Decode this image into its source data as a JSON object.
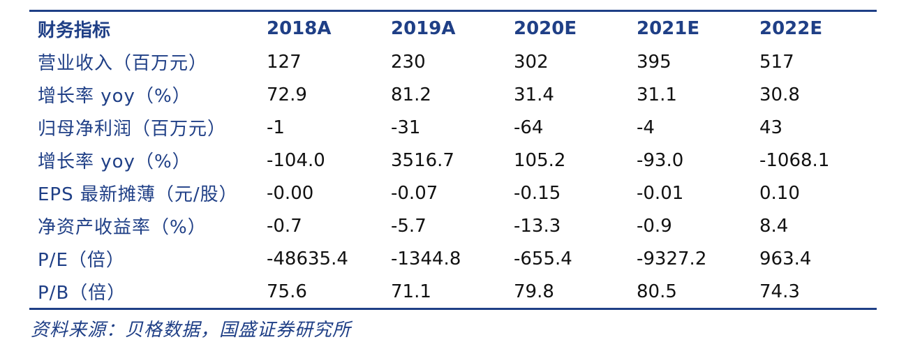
{
  "table": {
    "columns": [
      "财务指标",
      "2018A",
      "2019A",
      "2020E",
      "2021E",
      "2022E"
    ],
    "rows": [
      [
        "营业收入（百万元）",
        "127",
        "230",
        "302",
        "395",
        "517"
      ],
      [
        "增长率 yoy（%）",
        "72.9",
        "81.2",
        "31.4",
        "31.1",
        "30.8"
      ],
      [
        "归母净利润（百万元）",
        "-1",
        "-31",
        "-64",
        "-4",
        "43"
      ],
      [
        "增长率 yoy（%）",
        "-104.0",
        "3516.7",
        "105.2",
        "-93.0",
        "-1068.1"
      ],
      [
        "EPS 最新摊薄（元/股）",
        "-0.00",
        "-0.07",
        "-0.15",
        "-0.01",
        "0.10"
      ],
      [
        "净资产收益率（%）",
        "-0.7",
        "-5.7",
        "-13.3",
        "-0.9",
        "8.4"
      ],
      [
        "P/E（倍）",
        "-48635.4",
        "-1344.8",
        "-655.4",
        "-9327.2",
        "963.4"
      ],
      [
        "P/B（倍）",
        "75.6",
        "71.1",
        "79.8",
        "80.5",
        "74.3"
      ]
    ]
  },
  "source": "资料来源：贝格数据，国盛证券研究所",
  "colors": {
    "header": "#1f3f86",
    "rule": "#1f3f86",
    "text": "#111111"
  }
}
